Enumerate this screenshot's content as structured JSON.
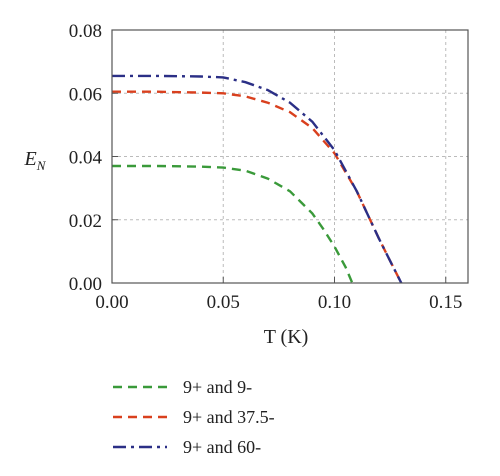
{
  "chart_data": {
    "type": "line",
    "title": "",
    "xlabel": "T (K)",
    "ylabel": "E",
    "ylabel_sub": "N",
    "xlim": [
      0.0,
      0.16
    ],
    "ylim": [
      0.0,
      0.08
    ],
    "x_ticks": [
      0.0,
      0.05,
      0.1,
      0.15
    ],
    "x_tick_labels": [
      "0.00",
      "0.05",
      "0.10",
      "0.15"
    ],
    "y_ticks": [
      0.0,
      0.02,
      0.04,
      0.06,
      0.08
    ],
    "y_tick_labels": [
      "0.00",
      "0.02",
      "0.04",
      "0.06",
      "0.08"
    ],
    "grid": true,
    "legend_position": "bottom",
    "series": [
      {
        "name": "9+ and 9-",
        "color": "#3a9a3a",
        "dash": "dashed",
        "x": [
          0.0,
          0.02,
          0.04,
          0.05,
          0.06,
          0.07,
          0.08,
          0.09,
          0.095,
          0.1,
          0.105,
          0.108
        ],
        "y": [
          0.037,
          0.037,
          0.0368,
          0.0365,
          0.0355,
          0.033,
          0.029,
          0.022,
          0.017,
          0.0115,
          0.005,
          0.0
        ]
      },
      {
        "name": "9+ and 37.5-",
        "color": "#d9401e",
        "dash": "dashed",
        "x": [
          0.0,
          0.02,
          0.04,
          0.05,
          0.06,
          0.07,
          0.08,
          0.09,
          0.1,
          0.11,
          0.12,
          0.125,
          0.13
        ],
        "y": [
          0.0605,
          0.0605,
          0.0602,
          0.06,
          0.059,
          0.057,
          0.054,
          0.049,
          0.041,
          0.029,
          0.014,
          0.007,
          0.0
        ]
      },
      {
        "name": "9+ and 60-",
        "color": "#2b2f86",
        "dash": "dashdot",
        "x": [
          0.0,
          0.02,
          0.04,
          0.05,
          0.06,
          0.07,
          0.08,
          0.09,
          0.1,
          0.11,
          0.12,
          0.125,
          0.13
        ],
        "y": [
          0.0655,
          0.0655,
          0.0653,
          0.065,
          0.0635,
          0.061,
          0.057,
          0.051,
          0.042,
          0.029,
          0.014,
          0.007,
          0.0
        ]
      }
    ]
  }
}
